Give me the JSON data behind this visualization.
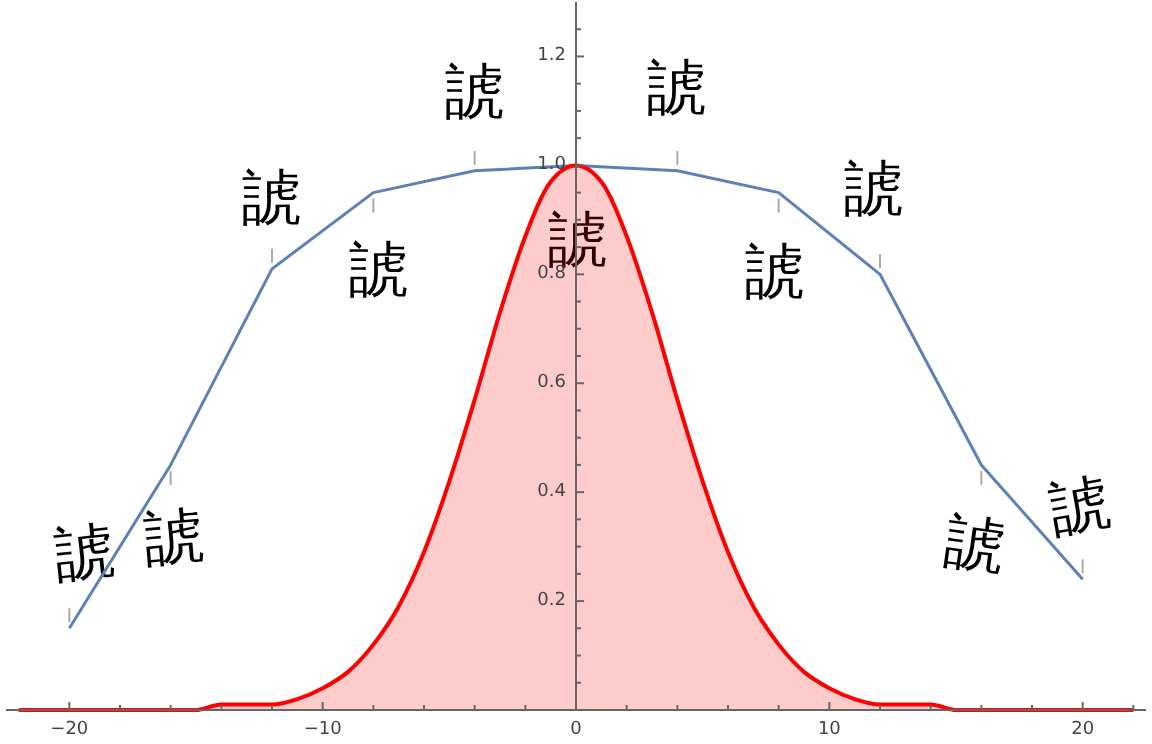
{
  "chart_data": {
    "type": "line",
    "xlim": [
      -22.5,
      22.5
    ],
    "ylim": [
      0,
      1.3
    ],
    "xticks": [
      {
        "value": -20,
        "label": "−20"
      },
      {
        "value": -18,
        "label": null
      },
      {
        "value": -16,
        "label": null
      },
      {
        "value": -14,
        "label": null
      },
      {
        "value": -12,
        "label": null
      },
      {
        "value": -10,
        "label": "−10"
      },
      {
        "value": -8,
        "label": null
      },
      {
        "value": -6,
        "label": null
      },
      {
        "value": -4,
        "label": null
      },
      {
        "value": -2,
        "label": null
      },
      {
        "value": 0,
        "label": "0"
      },
      {
        "value": 2,
        "label": null
      },
      {
        "value": 4,
        "label": null
      },
      {
        "value": 6,
        "label": null
      },
      {
        "value": 8,
        "label": null
      },
      {
        "value": 10,
        "label": "10"
      },
      {
        "value": 12,
        "label": null
      },
      {
        "value": 14,
        "label": null
      },
      {
        "value": 16,
        "label": null
      },
      {
        "value": 18,
        "label": null
      },
      {
        "value": 20,
        "label": "20"
      },
      {
        "value": 22,
        "label": null
      }
    ],
    "yticks": [
      {
        "value": 0.05,
        "label": null
      },
      {
        "value": 0.1,
        "label": null
      },
      {
        "value": 0.15,
        "label": null
      },
      {
        "value": 0.2,
        "label": "0.2"
      },
      {
        "value": 0.25,
        "label": null
      },
      {
        "value": 0.3,
        "label": null
      },
      {
        "value": 0.35,
        "label": null
      },
      {
        "value": 0.4,
        "label": "0.4"
      },
      {
        "value": 0.45,
        "label": null
      },
      {
        "value": 0.5,
        "label": null
      },
      {
        "value": 0.55,
        "label": null
      },
      {
        "value": 0.6,
        "label": "0.6"
      },
      {
        "value": 0.65,
        "label": null
      },
      {
        "value": 0.7,
        "label": null
      },
      {
        "value": 0.75,
        "label": null
      },
      {
        "value": 0.8,
        "label": "0.8"
      },
      {
        "value": 0.85,
        "label": null
      },
      {
        "value": 0.9,
        "label": null
      },
      {
        "value": 0.95,
        "label": null
      },
      {
        "value": 1.0,
        "label": "1.0"
      },
      {
        "value": 1.05,
        "label": null
      },
      {
        "value": 1.1,
        "label": null
      },
      {
        "value": 1.15,
        "label": null
      },
      {
        "value": 1.2,
        "label": "1.2"
      },
      {
        "value": 1.25,
        "label": null
      }
    ],
    "series": [
      {
        "color": "#5e81b5",
        "x": [
          -20,
          -16,
          -12,
          -8,
          -4,
          0,
          4,
          8,
          12,
          16,
          20
        ],
        "values": [
          0.15,
          0.45,
          0.81,
          0.95,
          0.99,
          1.0,
          0.99,
          0.95,
          0.8,
          0.45,
          0.24
        ]
      },
      {
        "type": "area",
        "color": "#ff0000",
        "x": [
          -22,
          -15,
          -14,
          -13,
          -12,
          -11,
          -10,
          -9,
          -8,
          -7,
          -6,
          -5,
          -4,
          -3,
          -2,
          -1,
          0,
          1,
          2,
          3,
          4,
          5,
          6,
          7,
          8,
          9,
          10,
          11,
          12,
          13,
          14,
          15,
          22
        ],
        "values": [
          0,
          0,
          0.01,
          0.01,
          0.01,
          0.02,
          0.04,
          0.07,
          0.12,
          0.19,
          0.29,
          0.42,
          0.57,
          0.73,
          0.87,
          0.97,
          1.0,
          0.97,
          0.87,
          0.73,
          0.57,
          0.42,
          0.29,
          0.19,
          0.12,
          0.07,
          0.04,
          0.02,
          0.01,
          0.01,
          0.01,
          0,
          0
        ]
      }
    ],
    "annotations": [
      {
        "text": "諕",
        "x": -20,
        "y": 0.15
      },
      {
        "text": "諕",
        "x": -16,
        "y": 0.45
      },
      {
        "text": "諕",
        "x": -12,
        "y": 0.81
      },
      {
        "text": "諕",
        "x": -8,
        "y": 0.95
      },
      {
        "text": "諕",
        "x": -4,
        "y": 0.99
      },
      {
        "text": "諕",
        "x": 0,
        "y": 1.0
      },
      {
        "text": "諕",
        "x": 4,
        "y": 0.99
      },
      {
        "text": "諕",
        "x": 8,
        "y": 0.95
      },
      {
        "text": "諕",
        "x": 12,
        "y": 0.8
      },
      {
        "text": "諕",
        "x": 16,
        "y": 0.45
      },
      {
        "text": "諕",
        "x": 20,
        "y": 0.24
      }
    ]
  }
}
